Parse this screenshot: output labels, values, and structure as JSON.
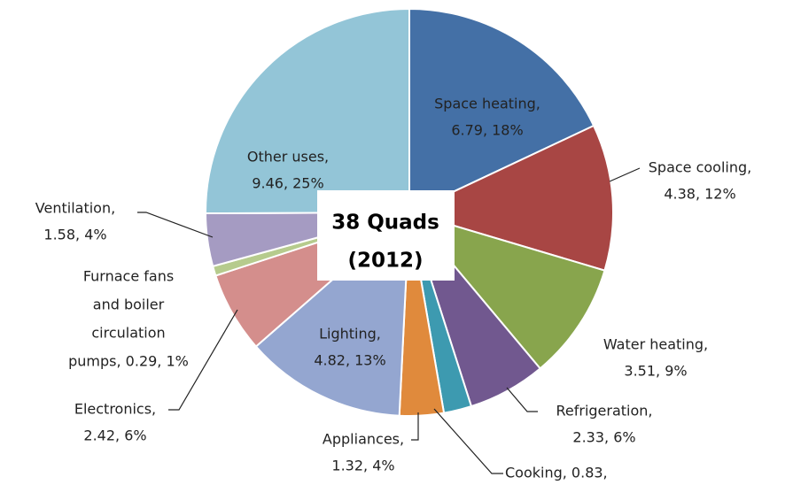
{
  "chart_data": {
    "type": "pie",
    "categories": [
      "Space heating",
      "Space cooling",
      "Water heating",
      "Refrigeration",
      "Cooking",
      "Appliances",
      "Lighting",
      "Electronics",
      "Furnace fans and boiler circulation pumps",
      "Ventilation",
      "Other uses"
    ],
    "values": [
      6.79,
      4.38,
      3.51,
      2.33,
      0.83,
      1.32,
      4.82,
      2.42,
      0.29,
      1.58,
      9.46
    ],
    "value_labels": [
      [
        "Space heating,",
        "6.79, 18%"
      ],
      [
        "Space cooling,",
        "4.38, 12%"
      ],
      [
        "Water heating,",
        "3.51, 9%"
      ],
      [
        "Refrigeration,",
        "2.33, 6%"
      ],
      [
        "Cooking, 0.83,"
      ],
      [
        "Appliances,",
        "1.32, 4%"
      ],
      [
        "Lighting,",
        "4.82, 13%"
      ],
      [
        "Electronics,",
        "2.42, 6%"
      ],
      [
        "Furnace fans",
        "and boiler",
        "circulation",
        "pumps, 0.29, 1%"
      ],
      [
        "Ventilation,",
        "1.58, 4%"
      ],
      [
        "Other uses,",
        "9.46, 25%"
      ]
    ],
    "colors": [
      "#4470a6",
      "#a84644",
      "#88a54d",
      "#71588f",
      "#3d9ab0",
      "#e08a3c",
      "#94a6d0",
      "#d48e8c",
      "#b6cb8d",
      "#a59bc2",
      "#93c5d7"
    ],
    "annotation": [
      "38 Quads",
      "(2012)"
    ]
  }
}
